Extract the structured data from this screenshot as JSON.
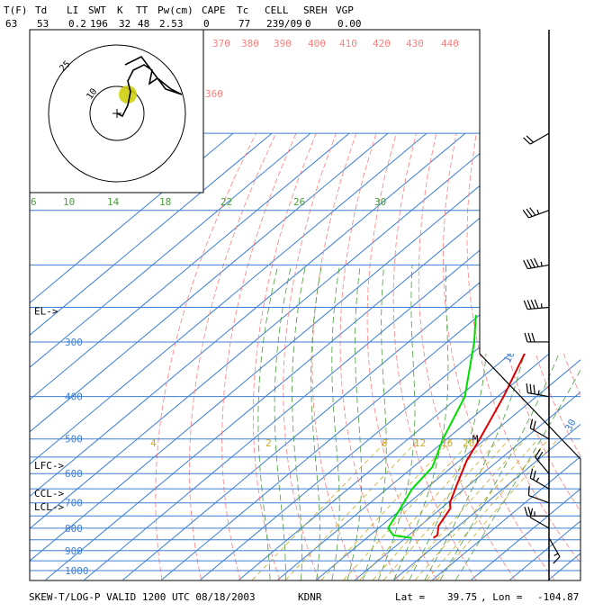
{
  "header": {
    "labels": [
      "T(F)",
      "Td",
      "LI",
      "SWT",
      "K",
      "TT",
      "Pw(cm)",
      "CAPE",
      "Tc",
      "CELL",
      "SREH",
      "VGP"
    ],
    "values": [
      "63",
      "53",
      "0.2",
      "196",
      "32",
      "48",
      "2.53",
      "0",
      "77",
      "239/09",
      "0",
      "0.00"
    ]
  },
  "footer": {
    "left": "SKEW-T/LOG-P VALID 1200 UTC 08/18/2003",
    "station": "KDNR",
    "lat_label": "Lat =",
    "lat": "39.75",
    "lon_label": ", Lon =",
    "lon": "-104.87"
  },
  "levels": [
    {
      "name": "EL",
      "label": "EL->",
      "pressure": 255
    },
    {
      "name": "LFC",
      "label": "LFC->",
      "pressure": 575
    },
    {
      "name": "CCL",
      "label": "CCL->",
      "pressure": 665
    },
    {
      "name": "LCL",
      "label": "LCL->",
      "pressure": 715
    }
  ],
  "chart_data": {
    "type": "line",
    "title": "",
    "pressure_levels": [
      1000,
      900,
      800,
      700,
      600,
      500,
      400,
      300
    ],
    "pressure_range": [
      1050,
      100
    ],
    "isotherms_c": [
      -30,
      -20,
      -10,
      0,
      10,
      30
    ],
    "theta_labels_k": [
      370,
      380,
      390,
      400,
      410,
      420,
      430,
      440,
      360
    ],
    "mixing_ratio_labels_upper": [
      6,
      10,
      14,
      18,
      22,
      26,
      30
    ],
    "mixing_ratio_labels_lower": [
      4,
      2,
      8,
      12,
      16,
      20
    ],
    "colors": {
      "temperature": "#dd0000",
      "dewpoint": "#00dd00",
      "isotherm": "#3d7fd6",
      "dry_adiabat": "#ff7f7f",
      "moist_adiabat": "#4a9e3a",
      "mixing_ratio": "#ccaa22",
      "axis": "#000000"
    },
    "series": [
      {
        "name": "T",
        "points": [
          [
            842,
            17.2
          ],
          [
            830,
            17.4
          ],
          [
            790,
            14.8
          ],
          [
            720,
            12.4
          ],
          [
            700,
            10.6
          ],
          [
            630,
            6.4
          ],
          [
            560,
            1.8
          ],
          [
            500,
            -1.5
          ],
          [
            400,
            -8.5
          ],
          [
            300,
            -18.5
          ],
          [
            270,
            -22.0
          ],
          [
            250,
            -29.0
          ],
          [
            220,
            -28.0
          ],
          [
            160,
            -38.5
          ],
          [
            125,
            -43.0
          ],
          [
            106,
            -44.5
          ]
        ]
      },
      {
        "name": "Td",
        "points": [
          [
            842,
            11.5
          ],
          [
            830,
            6.0
          ],
          [
            800,
            2.5
          ],
          [
            720,
            -0.5
          ],
          [
            650,
            -3.5
          ],
          [
            580,
            -5.0
          ],
          [
            500,
            -11.0
          ],
          [
            400,
            -18.5
          ],
          [
            300,
            -33.0
          ],
          [
            260,
            -41.0
          ]
        ]
      }
    ],
    "hodograph": {
      "ring_labels": [
        "10",
        "25"
      ],
      "points": [
        [
          0,
          0
        ],
        [
          2,
          -1
        ],
        [
          4,
          3
        ],
        [
          5,
          8
        ],
        [
          4,
          12
        ],
        [
          6,
          16
        ],
        [
          10,
          18
        ],
        [
          13,
          16
        ],
        [
          12,
          11
        ],
        [
          15,
          13
        ],
        [
          20,
          9
        ],
        [
          24,
          7
        ],
        [
          18,
          9
        ],
        [
          12,
          17
        ],
        [
          9,
          21
        ],
        [
          3,
          18
        ]
      ],
      "storm_motion": [
        4,
        7
      ]
    },
    "wind_barbs": [
      {
        "p": 842,
        "dir": 150,
        "spd": 5
      },
      {
        "p": 800,
        "dir": 300,
        "spd": 10
      },
      {
        "p": 750,
        "dir": 270,
        "spd": 15
      },
      {
        "p": 700,
        "dir": 290,
        "spd": 10
      },
      {
        "p": 650,
        "dir": 300,
        "spd": 15
      },
      {
        "p": 600,
        "dir": 320,
        "spd": 20
      },
      {
        "p": 500,
        "dir": 300,
        "spd": 20
      },
      {
        "p": 400,
        "dir": 280,
        "spd": 25
      },
      {
        "p": 300,
        "dir": 270,
        "spd": 30
      },
      {
        "p": 250,
        "dir": 265,
        "spd": 35
      },
      {
        "p": 200,
        "dir": 260,
        "spd": 35
      },
      {
        "p": 150,
        "dir": 250,
        "spd": 25
      },
      {
        "p": 100,
        "dir": 240,
        "spd": 20
      }
    ],
    "cell_marker": {
      "label": "M",
      "pressure": 500
    }
  }
}
